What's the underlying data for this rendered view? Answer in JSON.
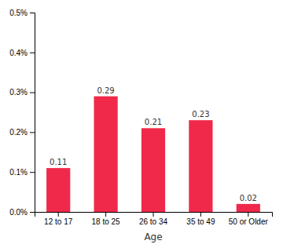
{
  "chart_data": {
    "type": "bar",
    "xlabel": "Age",
    "categories": [
      "12 to 17",
      "18 to 25",
      "26 to 34",
      "35 to 49",
      "50 or Older"
    ],
    "values": [
      0.11,
      0.29,
      0.21,
      0.23,
      0.02
    ],
    "color": "#F0294A",
    "ylim": [
      0,
      0.5
    ],
    "yticks": [
      {
        "value": 0.0,
        "label": "0.0%"
      },
      {
        "value": 0.1,
        "label": "0.1%"
      },
      {
        "value": 0.2,
        "label": "0.2%"
      },
      {
        "value": 0.3,
        "label": "0.3%"
      },
      {
        "value": 0.4,
        "label": "0.4%"
      },
      {
        "value": 0.5,
        "label": "0.5%"
      }
    ],
    "grid": false,
    "data_labels": true
  }
}
